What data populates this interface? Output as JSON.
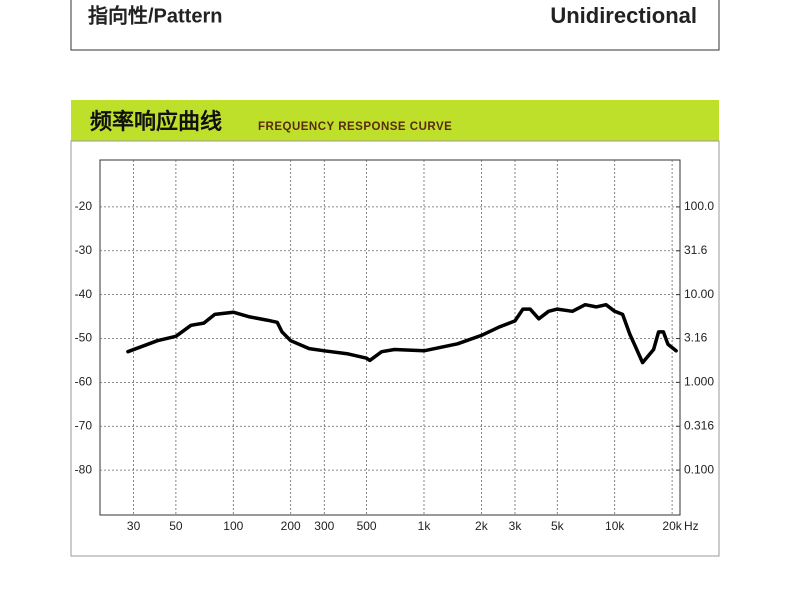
{
  "header": {
    "label": "指向性/Pattern",
    "value": "Unidirectional"
  },
  "banner": {
    "title": "频率响应曲线",
    "subtitle": "FREQUENCY RESPONSE CURVE"
  },
  "chart_data": {
    "type": "line",
    "x": [
      28,
      40,
      50,
      60,
      70,
      80,
      100,
      120,
      150,
      170,
      180,
      200,
      250,
      300,
      400,
      500,
      520,
      600,
      700,
      1000,
      1500,
      2000,
      2500,
      3000,
      3300,
      3600,
      4000,
      4500,
      5000,
      6000,
      7000,
      8000,
      9000,
      10000,
      11000,
      12000,
      14000,
      16000,
      17000,
      18000,
      19000,
      21000
    ],
    "values": [
      -53,
      -50.5,
      -49.5,
      -47,
      -46.5,
      -44.5,
      -44,
      -45,
      -45.8,
      -46.3,
      -48.5,
      -50.5,
      -52.3,
      -52.8,
      -53.5,
      -54.5,
      -55,
      -53,
      -52.5,
      -52.8,
      -51.2,
      -49.3,
      -47.3,
      -46,
      -43.3,
      -43.3,
      -45.5,
      -43.8,
      -43.3,
      -43.8,
      -42.3,
      -42.8,
      -42.3,
      -43.8,
      -44.5,
      -49,
      -55.5,
      -52.5,
      -48.5,
      -48.5,
      -51.3,
      -52.8
    ],
    "color": "#000000",
    "xscale": "log",
    "xlim": [
      20,
      22000
    ],
    "xticks": [
      30,
      50,
      100,
      200,
      300,
      500,
      {
        "value": 1000,
        "label": "1k"
      },
      {
        "value": 2000,
        "label": "2k"
      },
      {
        "value": 3000,
        "label": "3k"
      },
      {
        "value": 5000,
        "label": "5k"
      },
      {
        "value": 10000,
        "label": "10k"
      },
      {
        "value": 20000,
        "label": "20k"
      }
    ],
    "xlabel": "Hz",
    "ylim": [
      -90,
      -10
    ],
    "yticks": [
      -20,
      -30,
      -40,
      -50,
      -60,
      -70,
      -80
    ],
    "y2scale": "log",
    "y2lim": [
      0.03162,
      316.2
    ],
    "y2ticks": [
      {
        "value": 100,
        "label": "100.0"
      },
      31.6,
      {
        "value": 10,
        "label": "10.00"
      },
      3.16,
      {
        "value": 1,
        "label": "1.000"
      },
      0.316,
      {
        "value": 0.1,
        "label": "0.100"
      }
    ],
    "grid": true
  }
}
